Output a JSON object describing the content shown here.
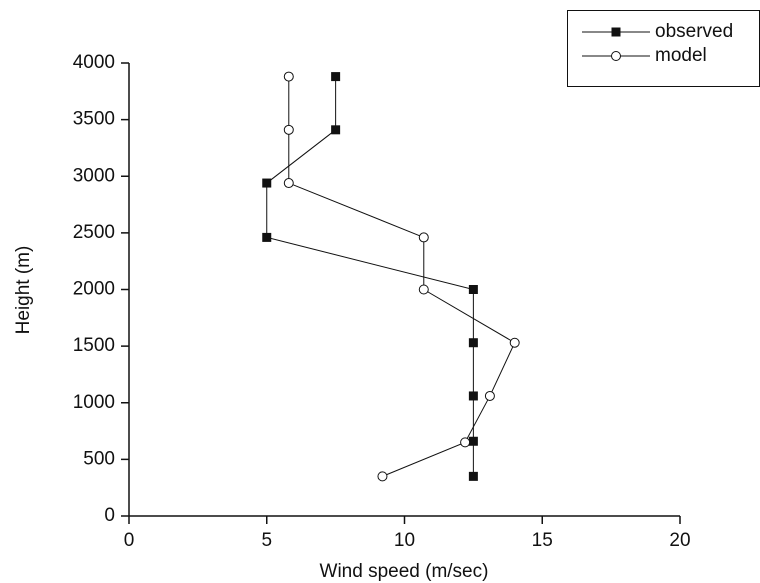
{
  "chart_data": {
    "type": "line",
    "xlabel": "Wind speed (m/sec)",
    "ylabel": "Height (m)",
    "xlim": [
      0,
      20
    ],
    "xticks": [
      0,
      5,
      10,
      15,
      20
    ],
    "ylim": [
      0,
      4000
    ],
    "yticks": [
      0,
      500,
      1000,
      1500,
      2000,
      2500,
      3000,
      3500,
      4000
    ],
    "legend": "top-right",
    "series": [
      {
        "name": "observed",
        "color": "#111111",
        "marker": "square",
        "x": [
          7.5,
          7.5,
          5,
          5,
          12.5,
          12.5,
          12.5,
          12.5,
          12.5
        ],
        "values": [
          3880,
          3410,
          2940,
          2460,
          2000,
          1530,
          1060,
          660,
          350
        ]
      },
      {
        "name": "model",
        "color": "#111111",
        "marker": "circle",
        "x": [
          5.8,
          5.8,
          5.8,
          10.7,
          10.7,
          14,
          13.1,
          12.2,
          9.2
        ],
        "values": [
          3880,
          3410,
          2940,
          2460,
          2000,
          1530,
          1060,
          650,
          350
        ]
      }
    ]
  }
}
